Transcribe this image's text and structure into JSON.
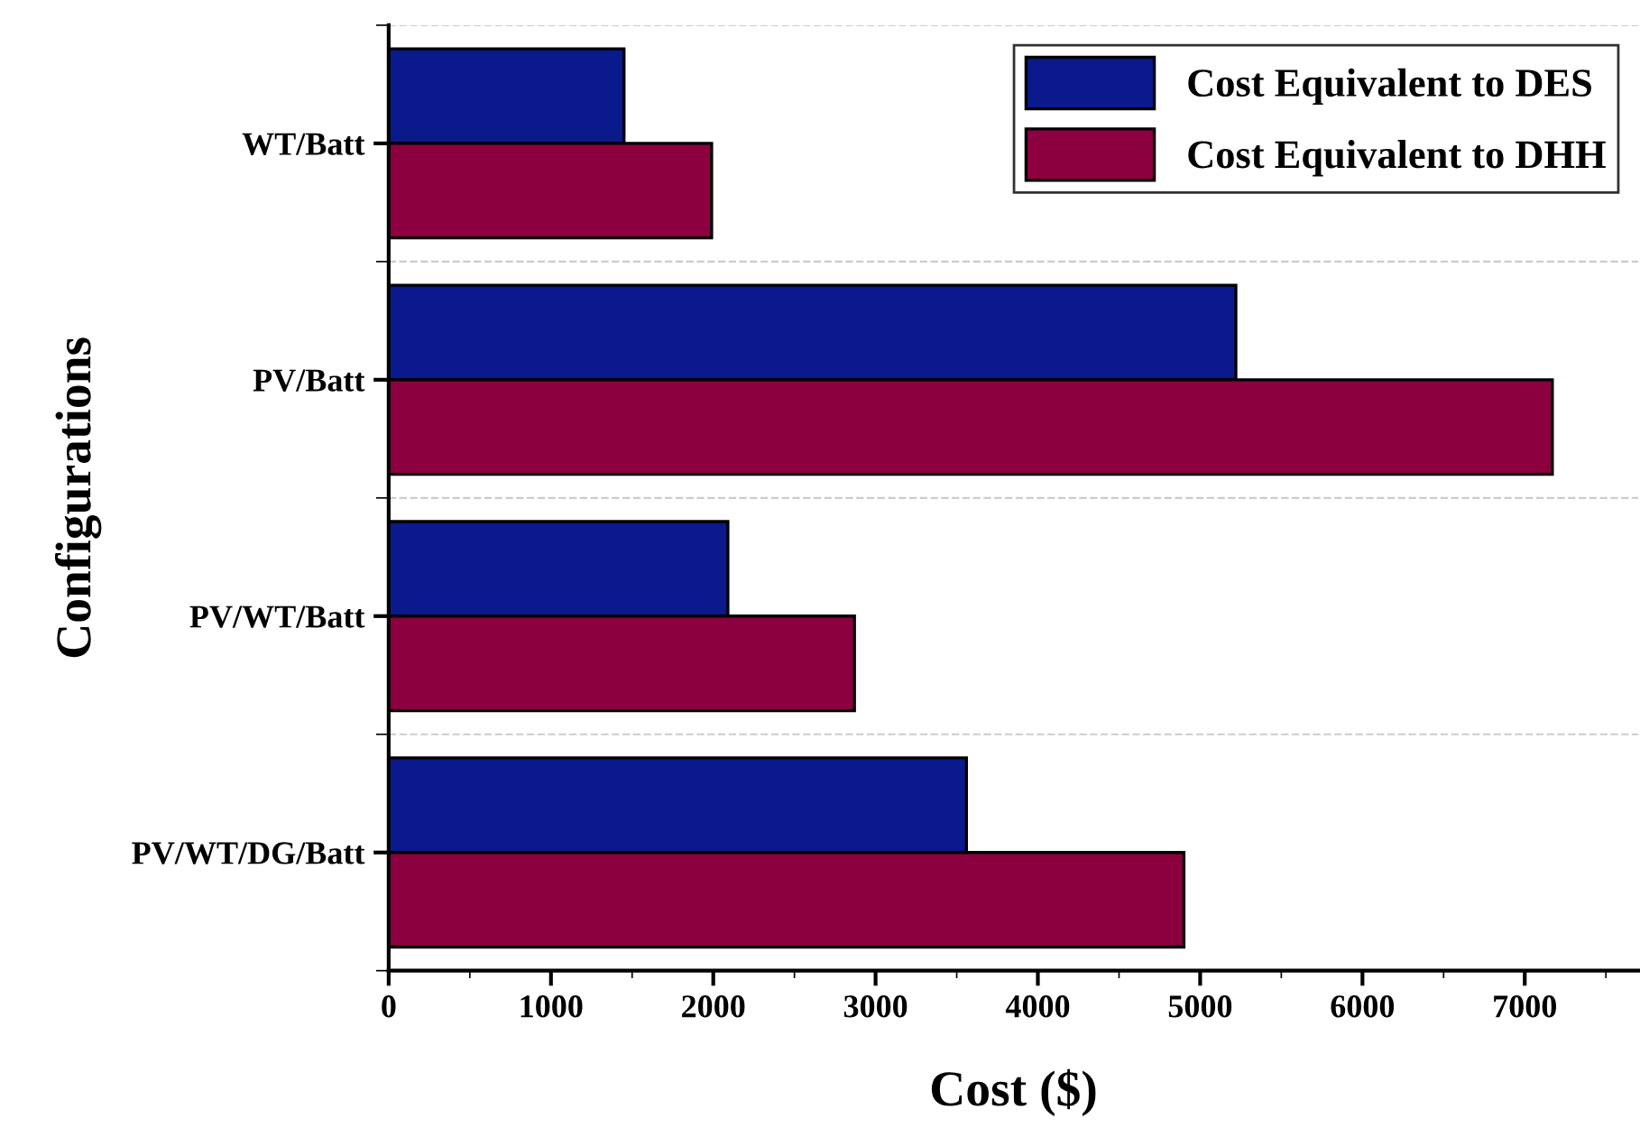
{
  "chart_data": {
    "type": "bar",
    "orientation": "horizontal",
    "xlabel": "Cost ($)",
    "ylabel": "Configurations",
    "categories": [
      "WT/Batt",
      "PV/Batt",
      "PV/WT/Batt",
      "PV/WT/DG/Batt"
    ],
    "series": [
      {
        "name": "Cost Equivalent to DES",
        "color": "#0a1a8c",
        "values": [
          1450,
          5220,
          2090,
          3560
        ]
      },
      {
        "name": "Cost Equivalent to DHH",
        "color": "#8c0040",
        "values": [
          1990,
          7170,
          2870,
          4900
        ]
      }
    ],
    "xlim": [
      0,
      7700
    ],
    "xticks": [
      0,
      1000,
      2000,
      3000,
      4000,
      5000,
      6000,
      7000
    ],
    "grid": "y",
    "legend": "top right"
  }
}
